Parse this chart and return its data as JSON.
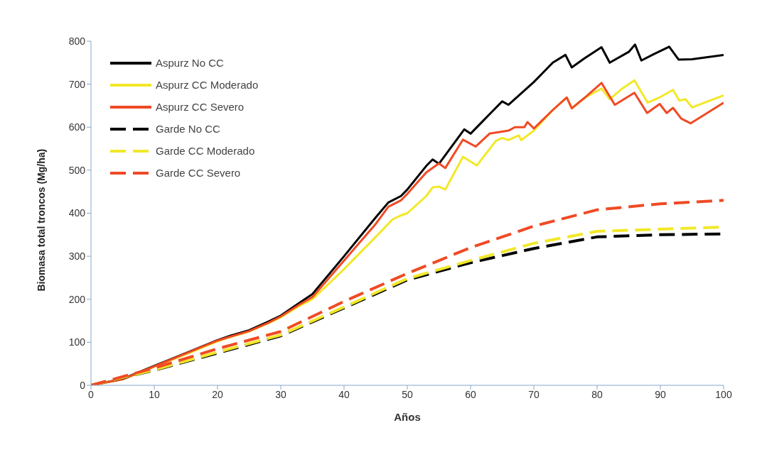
{
  "chart_data": {
    "type": "line",
    "xlabel": "Años",
    "ylabel": "Biomasa total troncos (Mg/ha)",
    "xlim": [
      0,
      100
    ],
    "xticks": [
      0,
      10,
      20,
      30,
      40,
      50,
      60,
      70,
      80,
      90,
      100
    ],
    "ylim": [
      0,
      800
    ],
    "yticks": [
      0,
      100,
      200,
      300,
      400,
      500,
      600,
      700,
      800
    ],
    "grid": false,
    "legend": "top left",
    "marker": "none",
    "series": [
      {
        "name": "Aspurz No CC",
        "color": "#000000",
        "line_style": "solid",
        "x": [
          0,
          5,
          10,
          15,
          20,
          22,
          25,
          28,
          30,
          33,
          35,
          40,
          45,
          47,
          49,
          50,
          53,
          54,
          55,
          57,
          59,
          60,
          62,
          63,
          65,
          66,
          70,
          73,
          75,
          76,
          78,
          80.7,
          82,
          85,
          86,
          87,
          89,
          91.4,
          92.9,
          95,
          100
        ],
        "values": [
          0,
          15,
          45,
          75,
          105,
          115,
          128,
          148,
          162,
          192,
          212,
          300,
          390,
          425,
          440,
          455,
          510,
          525,
          515,
          555,
          595,
          585,
          615,
          630,
          660,
          652,
          705,
          750,
          768,
          739,
          760,
          786,
          750,
          775,
          792,
          755,
          770,
          787,
          757,
          758,
          768
        ]
      },
      {
        "name": "Aspurz CC Moderado",
        "color": "#f2e829",
        "line_style": "solid",
        "x": [
          0,
          5,
          10,
          15,
          20,
          22,
          25,
          28,
          30,
          33,
          35,
          40,
          45,
          47.7,
          49,
          50,
          53,
          54,
          55,
          56,
          58.8,
          61,
          64,
          65,
          66,
          67.6,
          68,
          70,
          73,
          75.2,
          76,
          78,
          80.7,
          82,
          84,
          85.9,
          88,
          90,
          92,
          93,
          94,
          95,
          100
        ],
        "values": [
          0,
          14,
          43,
          72,
          102,
          112,
          125,
          144,
          158,
          185,
          200,
          270,
          345,
          386,
          395,
          400,
          440,
          460,
          462,
          455,
          531,
          511,
          568,
          575,
          570,
          581,
          570,
          592,
          640,
          669,
          644,
          668,
          690,
          665,
          690,
          709,
          657,
          670,
          687,
          662,
          665,
          646,
          674
        ]
      },
      {
        "name": "Aspurz CC Severo",
        "color": "#f04a24",
        "line_style": "solid",
        "x": [
          0,
          5,
          10,
          15,
          20,
          22,
          25,
          28,
          30,
          33,
          35,
          40,
          45,
          47,
          49,
          50,
          53,
          55,
          56,
          58.8,
          60.8,
          63,
          66,
          67,
          68.5,
          69,
          70,
          73,
          75.2,
          76,
          78,
          80.7,
          82.8,
          85.9,
          87.9,
          89.9,
          91,
          92,
          93.3,
          94.8,
          100
        ],
        "values": [
          0,
          14,
          44,
          74,
          104,
          113,
          126,
          145,
          160,
          188,
          205,
          290,
          375,
          415,
          430,
          445,
          495,
          516,
          505,
          571,
          555,
          585,
          592,
          600,
          600,
          612,
          597,
          640,
          669,
          644,
          668,
          703,
          652,
          680,
          633,
          654,
          633,
          645,
          620,
          609,
          657
        ]
      },
      {
        "name": "Garde No CC",
        "color": "#000000",
        "line_style": "dashed",
        "x": [
          0,
          10,
          20,
          30,
          40,
          50,
          60,
          70,
          80,
          90,
          100
        ],
        "values": [
          0,
          35,
          75,
          115,
          180,
          245,
          285,
          318,
          345,
          350,
          352
        ]
      },
      {
        "name": "Garde CC Moderado",
        "color": "#f2e829",
        "line_style": "dashed",
        "x": [
          0,
          10,
          20,
          30,
          40,
          50,
          60,
          70,
          80,
          90,
          100
        ],
        "values": [
          0,
          36,
          77,
          117,
          182,
          248,
          290,
          330,
          358,
          363,
          368
        ]
      },
      {
        "name": "Garde CC Severo",
        "color": "#f04a24",
        "line_style": "dashed",
        "x": [
          0,
          10,
          20,
          30,
          40,
          50,
          60,
          70,
          80,
          90,
          100
        ],
        "values": [
          0,
          40,
          85,
          125,
          195,
          260,
          320,
          370,
          408,
          422,
          430
        ]
      }
    ]
  }
}
